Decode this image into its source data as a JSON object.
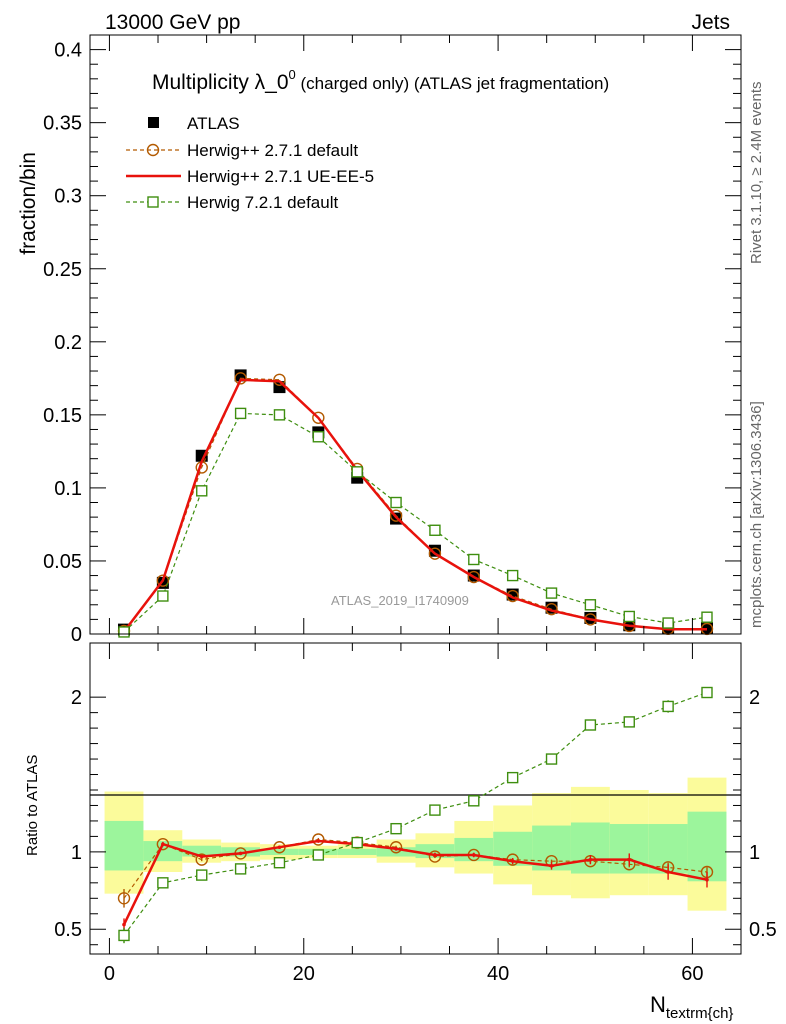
{
  "header": {
    "left": "13000 GeV pp",
    "right": "Jets"
  },
  "side_labels": {
    "rivet": "Rivet 3.1.10, ≥ 2.4M events",
    "mcplots": "mcplots.cern.ch [arXiv:1306.3436]"
  },
  "colors": {
    "atlas": "#000000",
    "herwigpp_default": "#b35a00",
    "herwigpp_ueee5": "#e8120c",
    "herwig7": "#3e8e0f",
    "band_outer": "#fbfb9b",
    "band_inner": "#9cf59c"
  },
  "chart_data": [
    {
      "type": "scatter",
      "title_main": "Multiplicity λ_0",
      "title_sup": "0",
      "title_rest": " (charged only) (ATLAS jet fragmentation)",
      "ylabel": "fraction/bin",
      "watermark": "ATLAS_2019_I1740909",
      "xlim": [
        -2,
        65
      ],
      "ylim": [
        0,
        0.41
      ],
      "yticks": [
        0,
        0.05,
        0.1,
        0.15,
        0.2,
        0.25,
        0.3,
        0.35,
        0.4
      ],
      "ytick_labels": [
        "0",
        "0.05",
        "0.1",
        "0.15",
        "0.2",
        "0.25",
        "0.3",
        "0.35",
        "0.4"
      ],
      "x": [
        1.5,
        5.5,
        9.5,
        13.5,
        17.5,
        21.5,
        25.5,
        29.5,
        33.5,
        37.5,
        41.5,
        45.5,
        49.5,
        53.5,
        57.5,
        61.5
      ],
      "series": [
        {
          "name": "ATLAS",
          "key": "atlas",
          "style": "data",
          "values": [
            0.003,
            0.035,
            0.122,
            0.177,
            0.169,
            0.138,
            0.107,
            0.079,
            0.057,
            0.04,
            0.027,
            0.018,
            0.011,
            0.006,
            0.004,
            0.004
          ]
        },
        {
          "name": "Herwig++ 2.7.1 default",
          "key": "herwigpp_default",
          "style": "circle",
          "values": [
            0.0021,
            0.0365,
            0.114,
            0.175,
            0.174,
            0.148,
            0.113,
            0.081,
            0.055,
            0.039,
            0.026,
            0.017,
            0.01,
            0.0055,
            0.0036,
            0.0035
          ]
        },
        {
          "name": "Herwig++ 2.7.1 UE-EE-5",
          "key": "herwigpp_ueee5",
          "style": "line",
          "values": [
            0.0016,
            0.0367,
            0.118,
            0.174,
            0.173,
            0.148,
            0.112,
            0.08,
            0.055,
            0.039,
            0.025,
            0.016,
            0.01,
            0.0057,
            0.0033,
            0.0033
          ]
        },
        {
          "name": "Herwig 7.2.1 default",
          "key": "herwig7",
          "style": "square",
          "values": [
            0.0014,
            0.026,
            0.098,
            0.151,
            0.15,
            0.135,
            0.111,
            0.09,
            0.071,
            0.051,
            0.04,
            0.028,
            0.02,
            0.012,
            0.0075,
            0.0115
          ]
        }
      ]
    },
    {
      "type": "scatter",
      "ylabel": "Ratio to ATLAS",
      "xlabel": "N",
      "xlabel_sub": "textrm{ch}",
      "xlim": [
        -2,
        65
      ],
      "ylim": [
        0.34,
        2.35
      ],
      "xticks": [
        0,
        20,
        40,
        60
      ],
      "xtick_labels": [
        "0",
        "20",
        "40",
        "60"
      ],
      "yticks": [
        0.5,
        1,
        2
      ],
      "ytick_labels": [
        "0.5",
        "1",
        "2"
      ],
      "x": [
        1.5,
        5.5,
        9.5,
        13.5,
        17.5,
        21.5,
        25.5,
        29.5,
        33.5,
        37.5,
        41.5,
        45.5,
        49.5,
        53.5,
        57.5,
        61.5
      ],
      "bands": {
        "edges": [
          -0.5,
          3.5,
          7.5,
          11.5,
          15.5,
          19.5,
          23.5,
          27.5,
          31.5,
          35.5,
          39.5,
          43.5,
          47.5,
          51.5,
          55.5,
          59.5,
          63.5
        ],
        "outer_lo": [
          0.73,
          0.87,
          0.93,
          0.94,
          0.95,
          0.96,
          0.96,
          0.93,
          0.9,
          0.86,
          0.79,
          0.72,
          0.7,
          0.72,
          0.72,
          0.62
        ],
        "outer_hi": [
          1.39,
          1.14,
          1.08,
          1.06,
          1.05,
          1.04,
          1.05,
          1.08,
          1.12,
          1.2,
          1.3,
          1.38,
          1.42,
          1.4,
          1.38,
          1.48
        ],
        "inner_lo": [
          0.88,
          0.94,
          0.97,
          0.97,
          0.98,
          0.98,
          0.98,
          0.97,
          0.96,
          0.94,
          0.91,
          0.88,
          0.86,
          0.86,
          0.86,
          0.81
        ],
        "inner_hi": [
          1.2,
          1.07,
          1.04,
          1.03,
          1.02,
          1.02,
          1.02,
          1.03,
          1.05,
          1.09,
          1.13,
          1.17,
          1.19,
          1.18,
          1.18,
          1.26
        ]
      },
      "series": [
        {
          "name": "Herwig++ 2.7.1 default",
          "key": "herwigpp_default",
          "style": "circle",
          "values": [
            0.7,
            1.05,
            0.95,
            0.99,
            1.03,
            1.08,
            1.06,
            1.03,
            0.97,
            0.98,
            0.95,
            0.94,
            0.94,
            0.92,
            0.9,
            0.87
          ],
          "errors": [
            0.06,
            0.01,
            0.01,
            0.01,
            0.01,
            0.01,
            0.01,
            0.01,
            0.01,
            0.01,
            0.01,
            0.01,
            0.015,
            0.02,
            0.03,
            0.03
          ]
        },
        {
          "name": "Herwig++ 2.7.1 UE-EE-5",
          "key": "herwigpp_ueee5",
          "style": "line",
          "values": [
            0.53,
            1.05,
            0.97,
            0.99,
            1.03,
            1.07,
            1.05,
            1.02,
            0.98,
            0.98,
            0.94,
            0.91,
            0.95,
            0.95,
            0.87,
            0.82
          ],
          "errors": [
            0.04,
            0.015,
            0.01,
            0.01,
            0.01,
            0.01,
            0.01,
            0.012,
            0.015,
            0.015,
            0.02,
            0.025,
            0.03,
            0.04,
            0.05,
            0.05
          ]
        },
        {
          "name": "Herwig 7.2.1 default",
          "key": "herwig7",
          "style": "square",
          "values": [
            0.46,
            0.8,
            0.85,
            0.89,
            0.93,
            0.98,
            1.06,
            1.15,
            1.27,
            1.33,
            1.48,
            1.6,
            1.82,
            1.84,
            1.94,
            2.03
          ],
          "errors": [
            0.05,
            0.01,
            0.01,
            0.01,
            0.01,
            0.01,
            0.01,
            0.01,
            0.01,
            0.01,
            0.01,
            0.02,
            0.02,
            0.03,
            0.04,
            0.03
          ]
        }
      ]
    }
  ]
}
